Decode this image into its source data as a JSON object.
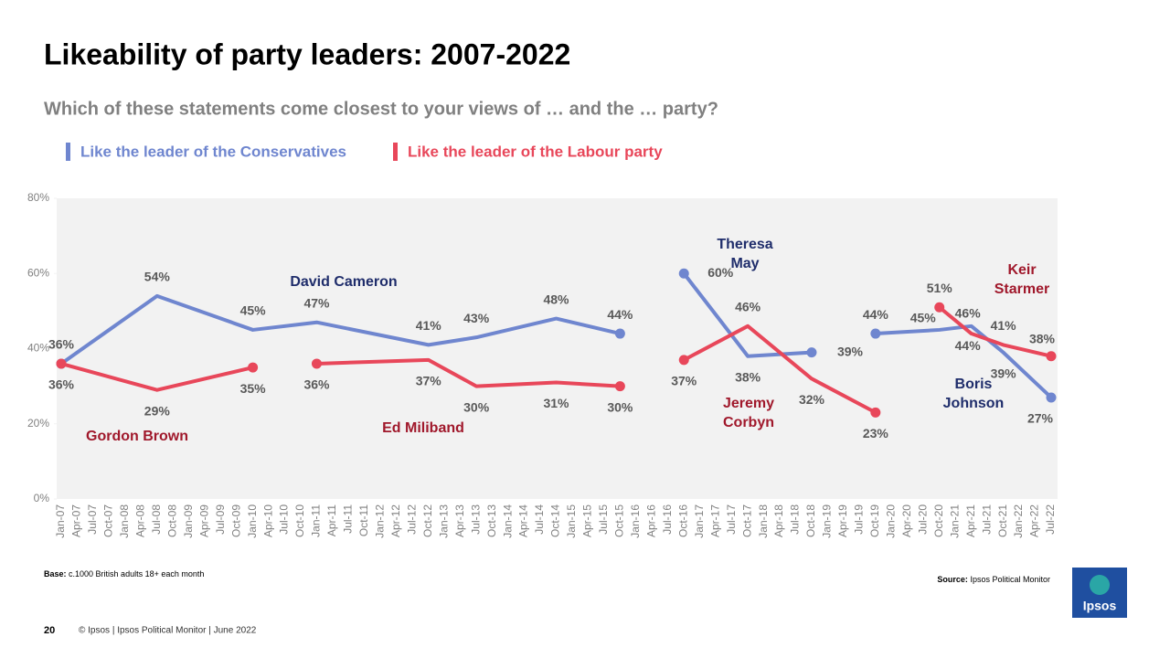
{
  "chart_data": {
    "type": "line",
    "title": "Likeability of party leaders: 2007-2022",
    "subtitle": "Which of these statements come closest to your views of … and the … party?",
    "categories": [
      "Jan-07",
      "Apr-07",
      "Jul-07",
      "Oct-07",
      "Jan-08",
      "Apr-08",
      "Jul-08",
      "Oct-08",
      "Jan-09",
      "Apr-09",
      "Jul-09",
      "Oct-09",
      "Jan-10",
      "Apr-10",
      "Jul-10",
      "Oct-10",
      "Jan-11",
      "Apr-11",
      "Jul-11",
      "Oct-11",
      "Jan-12",
      "Apr-12",
      "Jul-12",
      "Oct-12",
      "Jan-13",
      "Apr-13",
      "Jul-13",
      "Oct-13",
      "Jan-14",
      "Apr-14",
      "Jul-14",
      "Oct-14",
      "Jan-15",
      "Apr-15",
      "Jul-15",
      "Oct-15",
      "Jan-16",
      "Apr-16",
      "Jul-16",
      "Oct-16",
      "Jan-17",
      "Apr-17",
      "Jul-17",
      "Oct-17",
      "Jan-18",
      "Apr-18",
      "Jul-18",
      "Oct-18",
      "Jan-19",
      "Apr-19",
      "Jul-19",
      "Oct-19",
      "Jan-20",
      "Apr-20",
      "Jul-20",
      "Oct-20",
      "Jan-21",
      "Apr-21",
      "Jul-21",
      "Oct-21",
      "Jan-22",
      "Apr-22",
      "Jul-22"
    ],
    "ylim": [
      0,
      80
    ],
    "yticks": [
      {
        "value": 0,
        "label": "0%"
      },
      {
        "value": 20,
        "label": "20%"
      },
      {
        "value": 40,
        "label": "40%"
      },
      {
        "value": 60,
        "label": "60%"
      },
      {
        "value": 80,
        "label": "80%"
      }
    ],
    "series": [
      {
        "name": "Like the leader of the Conservatives",
        "color": "#6f86cf",
        "label_color": "#1f2d6b",
        "segments": [
          {
            "label": "David Cameron",
            "x": [
              "Jan-07",
              "Jul-08",
              "Jan-10",
              "Jan-11",
              "Oct-12",
              "Jul-13",
              "Oct-14",
              "Oct-15"
            ],
            "values": [
              36,
              54,
              45,
              47,
              41,
              43,
              48,
              44
            ],
            "value_labels": [
              "36%",
              "54%",
              "45%",
              "47%",
              "41%",
              "43%",
              "48%",
              "44%"
            ]
          },
          {
            "label": "Theresa May",
            "x": [
              "Oct-16",
              "Oct-17",
              "Oct-18"
            ],
            "values": [
              60,
              38,
              39
            ],
            "value_labels": [
              "60%",
              "38%",
              "39%"
            ]
          },
          {
            "label": "Boris Johnson",
            "x": [
              "Oct-19",
              "Oct-20",
              "Apr-21",
              "Oct-21",
              "Jul-22"
            ],
            "values": [
              44,
              45,
              46,
              39,
              27
            ],
            "value_labels": [
              "44%",
              "45%",
              "46%",
              "39%",
              "27%"
            ]
          }
        ]
      },
      {
        "name": "Like the leader of the Labour party",
        "color": "#e8475a",
        "label_color": "#a0182b",
        "segments": [
          {
            "label": "Gordon Brown",
            "x": [
              "Jan-07",
              "Jul-08",
              "Jan-10"
            ],
            "values": [
              36,
              29,
              35
            ],
            "value_labels": [
              "36%",
              "29%",
              "35%"
            ]
          },
          {
            "label": "Ed Miliband",
            "x": [
              "Jan-11",
              "Oct-12",
              "Jul-13",
              "Oct-14",
              "Oct-15"
            ],
            "values": [
              36,
              37,
              30,
              31,
              30
            ],
            "value_labels": [
              "36%",
              "37%",
              "30%",
              "31%",
              "30%"
            ]
          },
          {
            "label": "Jeremy Corbyn",
            "x": [
              "Oct-16",
              "Oct-17",
              "Oct-18",
              "Oct-19"
            ],
            "values": [
              37,
              46,
              32,
              23
            ],
            "value_labels": [
              "37%",
              "46%",
              "32%",
              "23%"
            ]
          },
          {
            "label": "Keir Starmer",
            "x": [
              "Oct-20",
              "Apr-21",
              "Oct-21",
              "Jul-22"
            ],
            "values": [
              51,
              44,
              41,
              38
            ],
            "value_labels": [
              "51%",
              "44%",
              "41%",
              "38%"
            ]
          }
        ]
      }
    ]
  },
  "notes": {
    "base_label": "Base:",
    "base": "c.1000 British adults 18+ each month",
    "source_label": "Source:",
    "source": "Ipsos  Political Monitor"
  },
  "footer": {
    "page": "20",
    "text": "© Ipsos | Ipsos  Political Monitor | June 2022",
    "logo": "Ipsos"
  }
}
